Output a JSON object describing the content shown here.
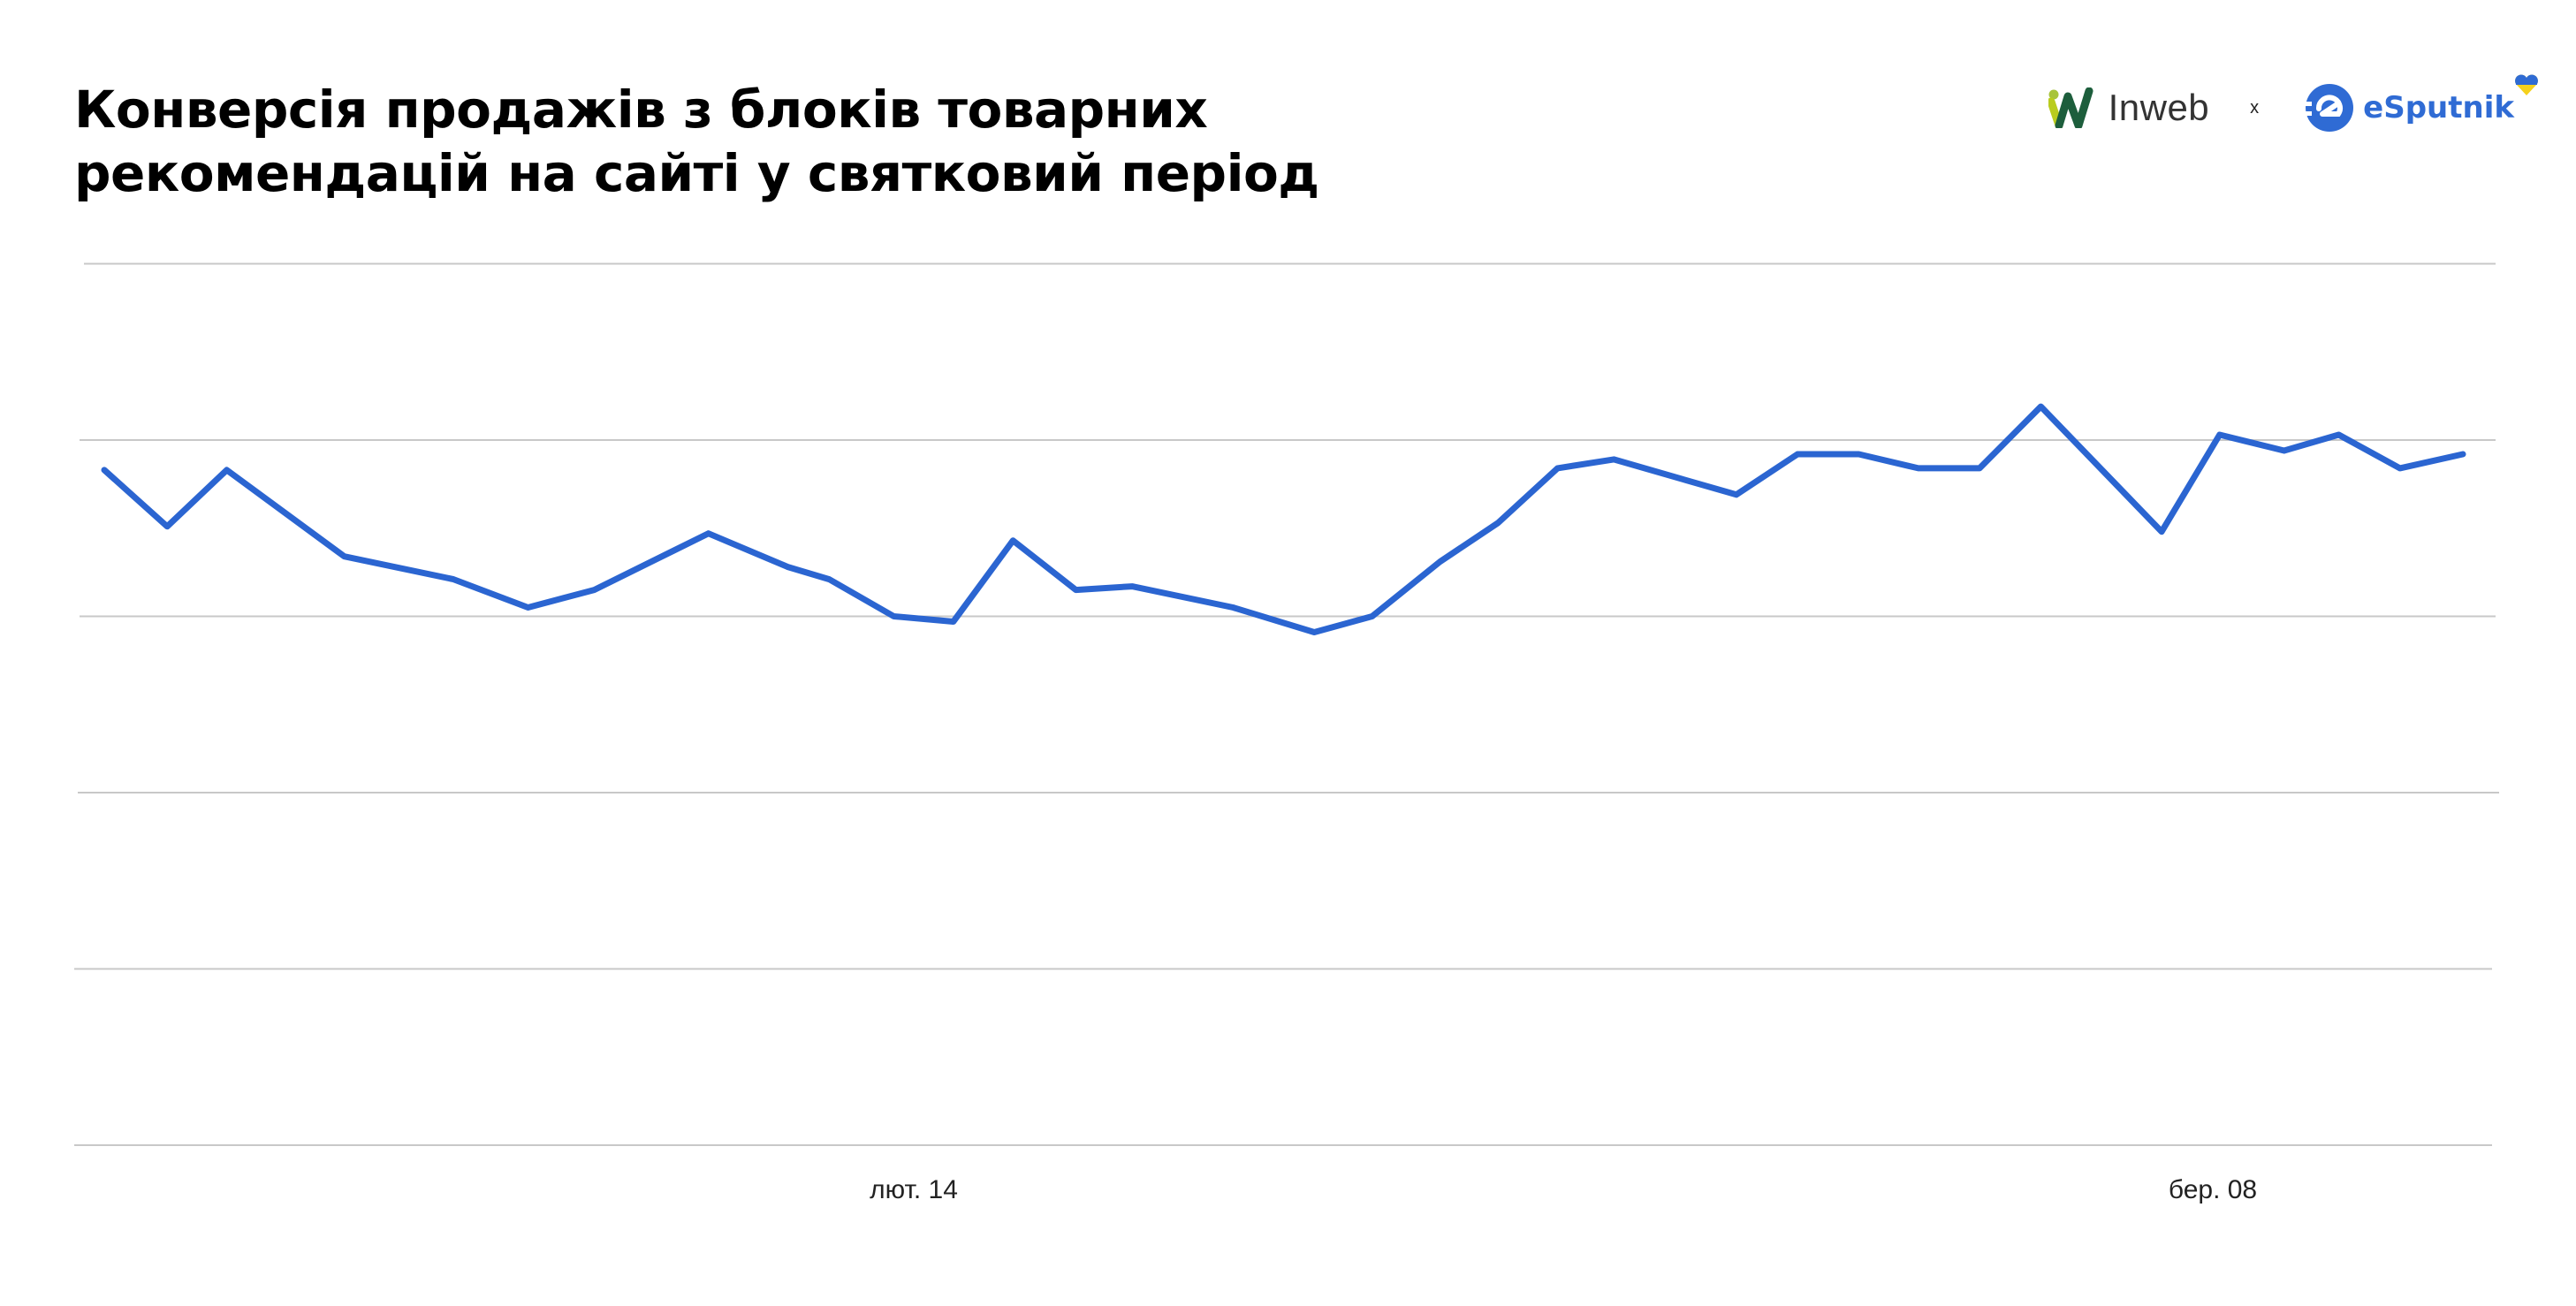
{
  "header": {
    "title_line1": "Конверсія продажів з блоків товарних",
    "title_line2": "рекомендацій на сайті у святковий період"
  },
  "logos": {
    "partner1": "Inweb",
    "separator": "x",
    "partner2": "eSputnik"
  },
  "colors": {
    "line": "#2b65d1",
    "grid": "#c8c8c8",
    "inweb_green_light": "#a8c43a",
    "inweb_green_dark": "#1d5e3c",
    "esputnik_blue": "#2f6bd4",
    "ua_blue": "#2f6bd4",
    "ua_yellow": "#f5d11c"
  },
  "chart_data": {
    "type": "line",
    "title": "Конверсія продажів з блоків товарних рекомендацій на сайті у святковий період",
    "xlabel": "",
    "ylabel": "",
    "x_tick_labels": [
      {
        "label": "лют. 14",
        "index": 14
      },
      {
        "label": "бер. 08",
        "index": 30
      }
    ],
    "y_axis_labels_visible": false,
    "ylim": [
      0,
      5
    ],
    "grid": true,
    "gridlines": [
      0,
      1,
      2,
      3,
      4,
      5
    ],
    "legend": null,
    "series": [
      {
        "name": "Конверсія",
        "values": [
          3.83,
          3.51,
          3.83,
          3.34,
          3.21,
          3.05,
          3.15,
          3.47,
          3.28,
          3.21,
          3.0,
          2.97,
          3.43,
          3.15,
          3.17,
          3.05,
          2.91,
          3.0,
          3.31,
          3.53,
          3.84,
          3.89,
          3.69,
          3.92,
          3.92,
          3.84,
          3.84,
          4.19,
          3.48,
          4.03,
          3.94,
          4.03,
          3.84,
          3.92
        ]
      }
    ],
    "x_positions": [
      63,
      101,
      137,
      208,
      274,
      319,
      359,
      428,
      476,
      501,
      540,
      576,
      612,
      650,
      684,
      745,
      794,
      829,
      870,
      905,
      941,
      975,
      1049,
      1086,
      1123,
      1159,
      1196,
      1233,
      1306,
      1341,
      1380,
      1413,
      1450,
      1488
    ]
  },
  "axis": {
    "tick1": "лют. 14",
    "tick2": "бер. 08"
  }
}
